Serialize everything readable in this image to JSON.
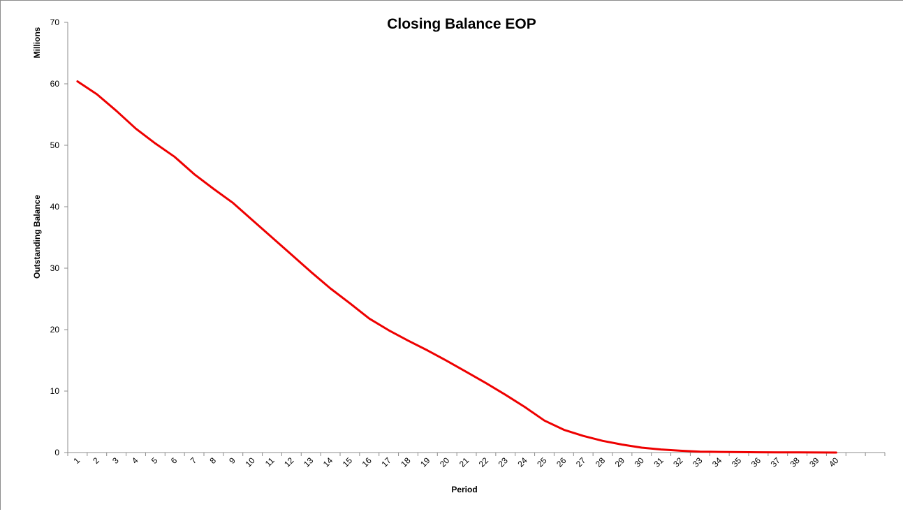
{
  "chart_data": {
    "type": "line",
    "title": "Closing Balance EOP",
    "xlabel": "Period",
    "ylabel": "Outstanding Balance",
    "y_unit_label": "Millions",
    "ylim": [
      0,
      70
    ],
    "yticks": [
      0,
      10,
      20,
      30,
      40,
      50,
      60,
      70
    ],
    "grid": false,
    "legend": "none",
    "line_color": "#ee0000",
    "categories": [
      "1",
      "2",
      "3",
      "4",
      "5",
      "6",
      "7",
      "8",
      "9",
      "10",
      "11",
      "12",
      "13",
      "14",
      "15",
      "16",
      "17",
      "18",
      "19",
      "20",
      "21",
      "22",
      "23",
      "24",
      "25",
      "26",
      "27",
      "28",
      "29",
      "30",
      "31",
      "32",
      "33",
      "34",
      "35",
      "36",
      "37",
      "38",
      "39",
      "40"
    ],
    "axis_slots": 42,
    "series": [
      {
        "values": [
          60.4,
          58.3,
          55.6,
          52.7,
          50.3,
          48.1,
          45.3,
          42.9,
          40.6,
          37.8,
          35.0,
          32.2,
          29.4,
          26.7,
          24.3,
          21.8,
          19.9,
          18.2,
          16.6,
          14.9,
          13.1,
          11.3,
          9.4,
          7.4,
          5.2,
          3.7,
          2.7,
          1.9,
          1.3,
          0.8,
          0.5,
          0.3,
          0.15,
          0.1,
          0.07,
          0.05,
          0.03,
          0.02,
          0.01,
          0.0
        ]
      }
    ]
  }
}
